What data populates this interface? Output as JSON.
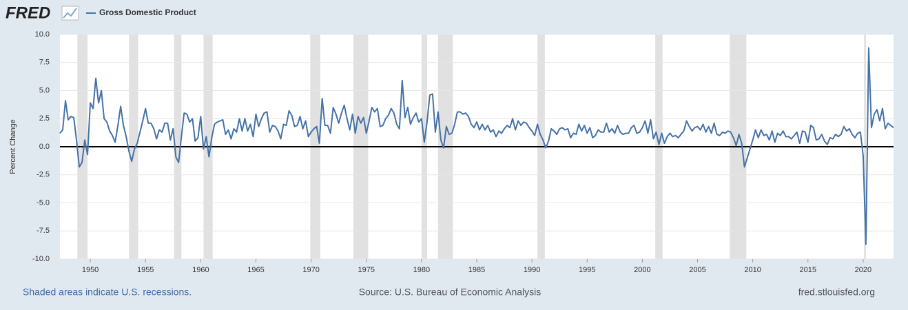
{
  "chart_data": {
    "type": "line",
    "logo": "FRED",
    "y_label": "Percent Change",
    "footer_left": "Shaded areas indicate U.S. recessions.",
    "footer_center": "Source: U.S. Bureau of Economic Analysis",
    "footer_right": "fred.stlouisfed.org",
    "xlim": [
      1947.25,
      2022.75
    ],
    "ylim": [
      -10,
      10
    ],
    "xticks": [
      1950,
      1955,
      1960,
      1965,
      1970,
      1975,
      1980,
      1985,
      1990,
      1995,
      2000,
      2005,
      2010,
      2015,
      2020
    ],
    "yticks": [
      {
        "value": -10,
        "label": "-10.0"
      },
      -7.5,
      {
        "value": -5,
        "label": "-5.0"
      },
      -2.5,
      {
        "value": 0,
        "label": "0.0"
      },
      2.5,
      {
        "value": 5,
        "label": "5.0"
      },
      7.5,
      {
        "value": 10,
        "label": "10.0"
      }
    ],
    "grid": true,
    "recession_color": "#e1e1e1",
    "recessions": [
      [
        1948.83,
        1949.75
      ],
      [
        1953.5,
        1954.33
      ],
      [
        1957.58,
        1958.25
      ],
      [
        1960.25,
        1961.08
      ],
      [
        1969.92,
        1970.83
      ],
      [
        1973.83,
        1975.17
      ],
      [
        1980.0,
        1980.5
      ],
      [
        1981.5,
        1982.83
      ],
      [
        1990.5,
        1991.17
      ],
      [
        2001.17,
        2001.83
      ],
      [
        2007.92,
        2009.42
      ],
      [
        2020.08,
        2020.25
      ]
    ],
    "x": [
      1947.25,
      1947.5,
      1947.75,
      1948,
      1948.25,
      1948.5,
      1948.75,
      1949,
      1949.25,
      1949.5,
      1949.75,
      1950,
      1950.25,
      1950.5,
      1950.75,
      1951,
      1951.25,
      1951.5,
      1951.75,
      1952,
      1952.25,
      1952.5,
      1952.75,
      1953,
      1953.25,
      1953.5,
      1953.75,
      1954,
      1954.25,
      1954.5,
      1954.75,
      1955,
      1955.25,
      1955.5,
      1955.75,
      1956,
      1956.25,
      1956.5,
      1956.75,
      1957,
      1957.25,
      1957.5,
      1957.75,
      1958,
      1958.25,
      1958.5,
      1958.75,
      1959,
      1959.25,
      1959.5,
      1959.75,
      1960,
      1960.25,
      1960.5,
      1960.75,
      1961,
      1961.25,
      1961.5,
      1961.75,
      1962,
      1962.25,
      1962.5,
      1962.75,
      1963,
      1963.25,
      1963.5,
      1963.75,
      1964,
      1964.25,
      1964.5,
      1964.75,
      1965,
      1965.25,
      1965.5,
      1965.75,
      1966,
      1966.25,
      1966.5,
      1966.75,
      1967,
      1967.25,
      1967.5,
      1967.75,
      1968,
      1968.25,
      1968.5,
      1968.75,
      1969,
      1969.25,
      1969.5,
      1969.75,
      1970,
      1970.25,
      1970.5,
      1970.75,
      1971,
      1971.25,
      1971.5,
      1971.75,
      1972,
      1972.25,
      1972.5,
      1972.75,
      1973,
      1973.25,
      1973.5,
      1973.75,
      1974,
      1974.25,
      1974.5,
      1974.75,
      1975,
      1975.25,
      1975.5,
      1975.75,
      1976,
      1976.25,
      1976.5,
      1976.75,
      1977,
      1977.25,
      1977.5,
      1977.75,
      1978,
      1978.25,
      1978.5,
      1978.75,
      1979,
      1979.25,
      1979.5,
      1979.75,
      1980,
      1980.25,
      1980.5,
      1980.75,
      1981,
      1981.25,
      1981.5,
      1981.75,
      1982,
      1982.25,
      1982.5,
      1982.75,
      1983,
      1983.25,
      1983.5,
      1983.75,
      1984,
      1984.25,
      1984.5,
      1984.75,
      1985,
      1985.25,
      1985.5,
      1985.75,
      1986,
      1986.25,
      1986.5,
      1986.75,
      1987,
      1987.25,
      1987.5,
      1987.75,
      1988,
      1988.25,
      1988.5,
      1988.75,
      1989,
      1989.25,
      1989.5,
      1989.75,
      1990,
      1990.25,
      1990.5,
      1990.75,
      1991,
      1991.25,
      1991.5,
      1991.75,
      1992,
      1992.25,
      1992.5,
      1992.75,
      1993,
      1993.25,
      1993.5,
      1993.75,
      1994,
      1994.25,
      1994.5,
      1994.75,
      1995,
      1995.25,
      1995.5,
      1995.75,
      1996,
      1996.25,
      1996.5,
      1996.75,
      1997,
      1997.25,
      1997.5,
      1997.75,
      1998,
      1998.25,
      1998.5,
      1998.75,
      1999,
      1999.25,
      1999.5,
      1999.75,
      2000,
      2000.25,
      2000.5,
      2000.75,
      2001,
      2001.25,
      2001.5,
      2001.75,
      2002,
      2002.25,
      2002.5,
      2002.75,
      2003,
      2003.25,
      2003.5,
      2003.75,
      2004,
      2004.25,
      2004.5,
      2004.75,
      2005,
      2005.25,
      2005.5,
      2005.75,
      2006,
      2006.25,
      2006.5,
      2006.75,
      2007,
      2007.25,
      2007.5,
      2007.75,
      2008,
      2008.25,
      2008.5,
      2008.75,
      2009,
      2009.25,
      2009.5,
      2009.75,
      2010,
      2010.25,
      2010.5,
      2010.75,
      2011,
      2011.25,
      2011.5,
      2011.75,
      2012,
      2012.25,
      2012.5,
      2012.75,
      2013,
      2013.25,
      2013.5,
      2013.75,
      2014,
      2014.25,
      2014.5,
      2014.75,
      2015,
      2015.25,
      2015.5,
      2015.75,
      2016,
      2016.25,
      2016.5,
      2016.75,
      2017,
      2017.25,
      2017.5,
      2017.75,
      2018,
      2018.25,
      2018.5,
      2018.75,
      2019,
      2019.25,
      2019.5,
      2019.75,
      2020,
      2020.25,
      2020.5,
      2020.75,
      2021,
      2021.25,
      2021.5,
      2021.75,
      2022,
      2022.25,
      2022.5,
      2022.75
    ],
    "series": [
      {
        "name": "Gross Domestic Product",
        "color": "#4572a7",
        "values": [
          1.2,
          1.5,
          4.1,
          2.4,
          2.7,
          2.6,
          0.6,
          -1.8,
          -1.4,
          0.6,
          -0.7,
          3.9,
          3.4,
          6.1,
          3.9,
          5.0,
          2.5,
          2.2,
          1.4,
          1.0,
          0.4,
          1.9,
          3.6,
          1.9,
          0.9,
          -0.4,
          -1.3,
          -0.2,
          0.3,
          1.3,
          2.3,
          3.4,
          2.1,
          2.1,
          1.6,
          0.7,
          1.5,
          1.3,
          2.1,
          2.1,
          0.6,
          1.6,
          -0.9,
          -1.4,
          0.9,
          3.0,
          2.9,
          2.2,
          2.5,
          0.5,
          0.8,
          2.7,
          -0.2,
          0.9,
          -0.9,
          0.8,
          2.0,
          2.2,
          2.3,
          2.4,
          1.1,
          1.5,
          0.7,
          1.6,
          1.3,
          2.5,
          1.4,
          2.5,
          1.4,
          2.0,
          0.9,
          2.9,
          1.8,
          2.5,
          3.0,
          3.1,
          1.3,
          1.9,
          1.8,
          1.4,
          0.7,
          2.0,
          1.9,
          3.2,
          2.8,
          1.8,
          1.9,
          2.7,
          1.6,
          2.3,
          0.9,
          1.3,
          1.6,
          1.8,
          0.3,
          4.3,
          1.9,
          1.9,
          1.2,
          3.5,
          2.9,
          2.1,
          3.0,
          3.7,
          2.5,
          1.5,
          2.9,
          1.2,
          2.7,
          2.1,
          2.6,
          1.2,
          2.3,
          3.5,
          3.1,
          3.4,
          1.8,
          1.9,
          2.5,
          2.8,
          3.4,
          3.0,
          2.0,
          1.6,
          5.9,
          2.6,
          3.5,
          2.0,
          2.6,
          3.0,
          2.2,
          2.5,
          0.4,
          2.2,
          4.6,
          4.7,
          1.3,
          3.1,
          0.6,
          -0.1,
          1.8,
          1.1,
          1.2,
          2.0,
          3.1,
          3.1,
          2.9,
          3.0,
          2.7,
          2.0,
          1.7,
          2.2,
          1.5,
          2.0,
          1.5,
          1.9,
          1.3,
          1.5,
          0.9,
          1.4,
          1.2,
          1.6,
          1.9,
          1.7,
          2.5,
          1.5,
          2.3,
          1.9,
          2.2,
          2.1,
          1.7,
          1.4,
          1.0,
          2.0,
          1.1,
          0.6,
          -0.1,
          0.5,
          1.6,
          1.4,
          1.1,
          1.6,
          1.7,
          1.5,
          1.6,
          0.8,
          1.2,
          1.1,
          2.0,
          1.4,
          1.9,
          1.2,
          1.7,
          0.8,
          1.0,
          1.5,
          1.3,
          1.3,
          2.1,
          1.3,
          1.6,
          1.2,
          1.9,
          1.3,
          1.1,
          1.2,
          1.2,
          1.7,
          1.9,
          1.2,
          1.3,
          1.7,
          2.3,
          1.2,
          2.4,
          0.7,
          1.3,
          0.2,
          1.2,
          0.3,
          0.9,
          1.2,
          0.9,
          1.0,
          0.8,
          1.1,
          1.4,
          2.3,
          1.8,
          1.4,
          1.7,
          1.8,
          1.5,
          2.0,
          1.3,
          1.8,
          1.2,
          2.1,
          1.1,
          1.0,
          1.3,
          1.2,
          1.4,
          1.3,
          0.8,
          0.1,
          1.1,
          0.3,
          -1.8,
          -1.0,
          -0.2,
          0.6,
          1.5,
          0.8,
          1.5,
          1.0,
          1.1,
          0.6,
          1.4,
          0.4,
          1.2,
          1.0,
          1.4,
          0.9,
          0.9,
          0.7,
          1.0,
          1.3,
          0.3,
          1.4,
          1.3,
          0.4,
          1.9,
          1.7,
          0.6,
          0.7,
          1.1,
          0.5,
          0.2,
          0.8,
          0.7,
          1.1,
          0.9,
          1.1,
          1.8,
          1.4,
          1.6,
          1.1,
          0.8,
          1.2,
          1.3,
          -0.8,
          -8.7,
          8.8,
          1.7,
          2.9,
          3.3,
          2.3,
          3.4,
          1.6,
          2.1,
          1.9,
          1.7
        ]
      }
    ]
  }
}
